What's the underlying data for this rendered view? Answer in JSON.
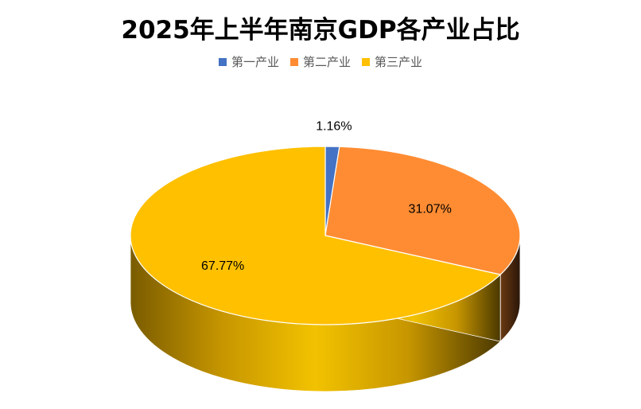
{
  "chart_data": {
    "type": "pie",
    "title": "2025年上半年南京GDP各产业占比",
    "categories": [
      "第一产业",
      "第二产业",
      "第三产业"
    ],
    "values": [
      1.16,
      31.07,
      67.77
    ],
    "data_labels": [
      "1.16%",
      "31.07%",
      "67.77%"
    ],
    "colors": [
      "#4472C4",
      "#FF8C33",
      "#FFC000"
    ],
    "legend_position": "top",
    "style": "3d"
  }
}
